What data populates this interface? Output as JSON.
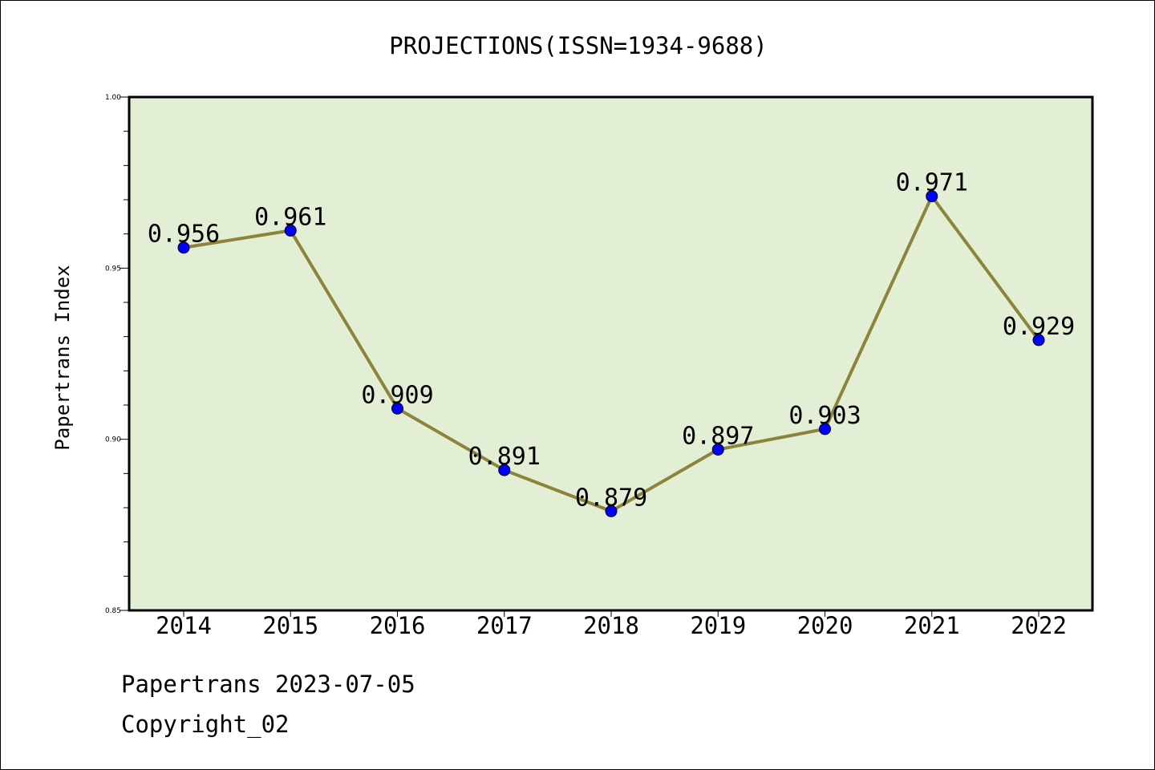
{
  "chart_data": {
    "type": "line",
    "title": "PROJECTIONS(ISSN=1934-9688)",
    "xlabel": "",
    "ylabel": "Papertrans Index",
    "categories": [
      "2014",
      "2015",
      "2016",
      "2017",
      "2018",
      "2019",
      "2020",
      "2021",
      "2022"
    ],
    "values": [
      0.956,
      0.961,
      0.909,
      0.891,
      0.879,
      0.897,
      0.903,
      0.971,
      0.929
    ],
    "data_labels": [
      "0.956",
      "0.961",
      "0.909",
      "0.891",
      "0.879",
      "0.897",
      "0.903",
      "0.971",
      "0.929"
    ],
    "ylim": [
      0.85,
      1.0
    ],
    "yticks": [
      0.85,
      0.9,
      0.95,
      1.0
    ],
    "ytick_labels": [
      "0.85",
      "0.90",
      "0.95",
      "1.00"
    ],
    "grid": false,
    "colors": {
      "plot_background": "#e2efd4",
      "line": "#8b8439",
      "marker": "#0000ff"
    }
  },
  "footer": {
    "date_line": "Papertrans 2023-07-05",
    "copyright": "Copyright_02"
  }
}
